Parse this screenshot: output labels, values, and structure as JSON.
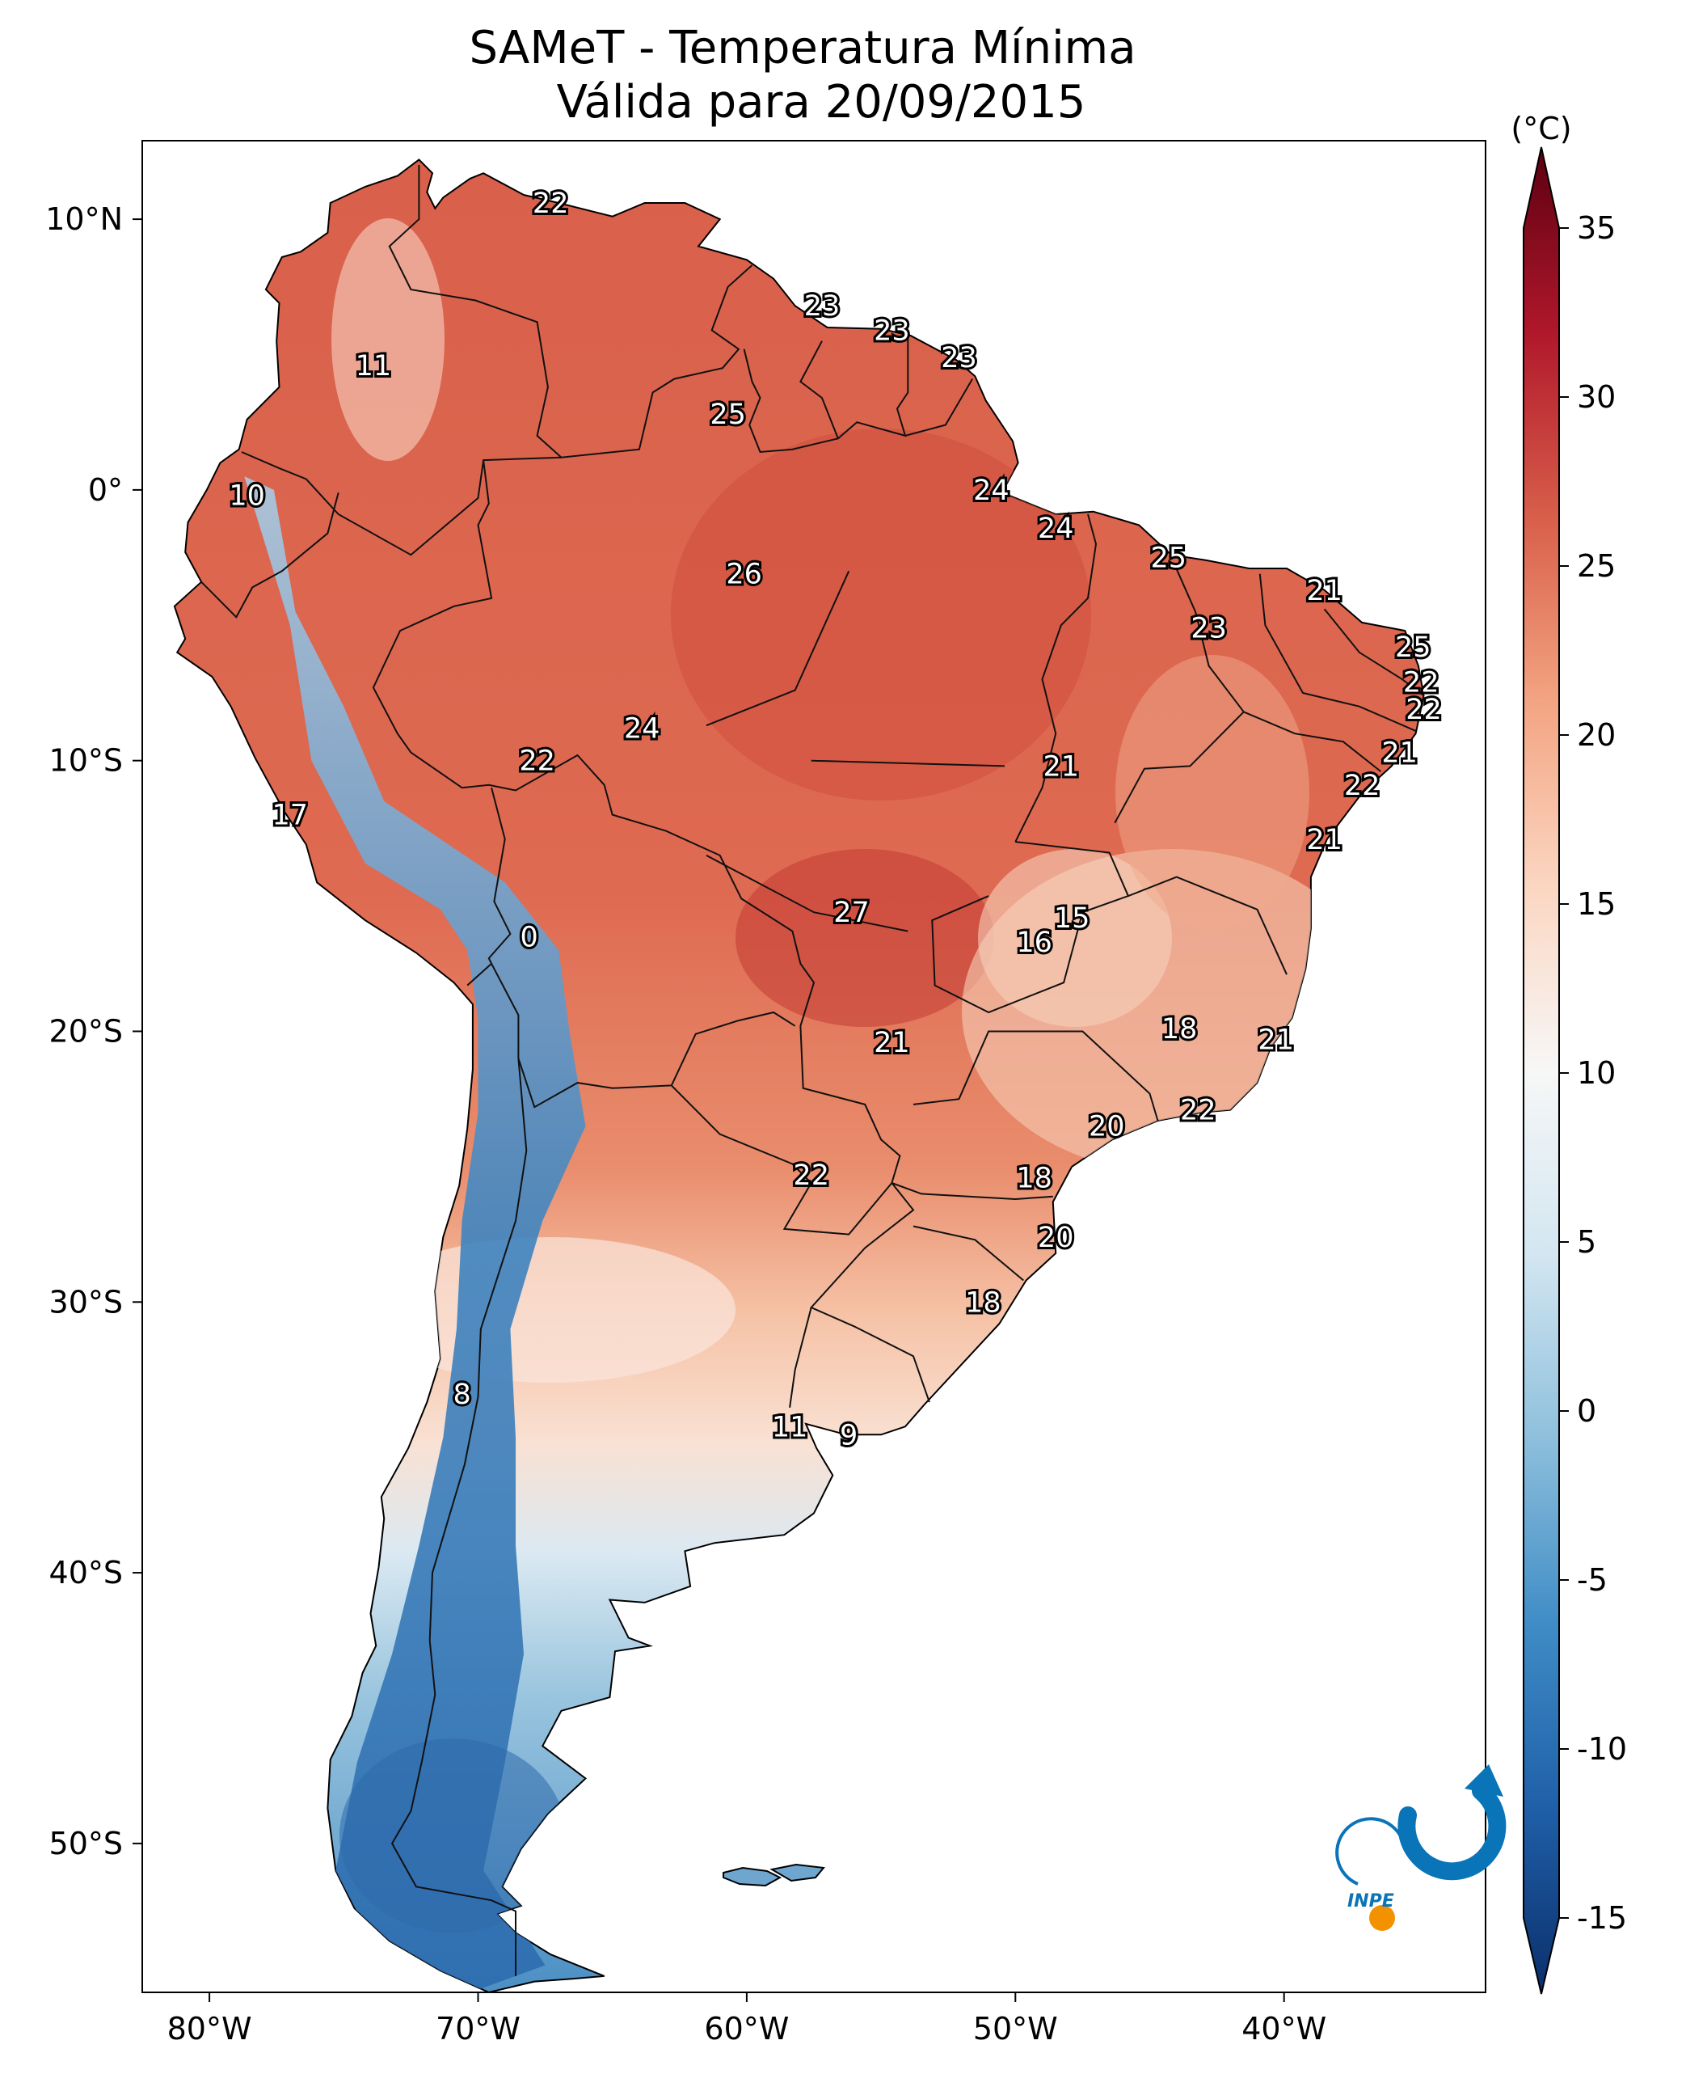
{
  "title": {
    "line1": "SAMeT - Temperatura Mínima",
    "line2": "Válida para 20/09/2015"
  },
  "map": {
    "type": "heatmap",
    "lat_ticks": [
      {
        "label": "10°N",
        "lat": 10
      },
      {
        "label": "0°",
        "lat": 0
      },
      {
        "label": "10°S",
        "lat": -10
      },
      {
        "label": "20°S",
        "lat": -20
      },
      {
        "label": "30°S",
        "lat": -30
      },
      {
        "label": "40°S",
        "lat": -40
      },
      {
        "label": "50°S",
        "lat": -50
      }
    ],
    "lon_ticks": [
      {
        "label": "80°W",
        "lon": -80
      },
      {
        "label": "70°W",
        "lon": -70
      },
      {
        "label": "60°W",
        "lon": -60
      },
      {
        "label": "50°W",
        "lon": -50
      },
      {
        "label": "40°W",
        "lon": -40
      }
    ],
    "lon_range": [
      -82.5,
      -32.5
    ],
    "lat_range": [
      -55.5,
      12.9
    ],
    "city_values": [
      {
        "value": "22",
        "lon": -67.3,
        "lat": 10.6
      },
      {
        "value": "23",
        "lon": -57.2,
        "lat": 6.8
      },
      {
        "value": "23",
        "lon": -54.6,
        "lat": 5.9
      },
      {
        "value": "23",
        "lon": -52.1,
        "lat": 4.9
      },
      {
        "value": "11",
        "lon": -73.9,
        "lat": 4.6
      },
      {
        "value": "25",
        "lon": -60.7,
        "lat": 2.8
      },
      {
        "value": "24",
        "lon": -50.9,
        "lat": 0.0
      },
      {
        "value": "10",
        "lon": -78.6,
        "lat": -0.2
      },
      {
        "value": "24",
        "lon": -48.5,
        "lat": -1.4
      },
      {
        "value": "25",
        "lon": -44.3,
        "lat": -2.5
      },
      {
        "value": "26",
        "lon": -60.1,
        "lat": -3.1
      },
      {
        "value": "21",
        "lon": -38.5,
        "lat": -3.7
      },
      {
        "value": "23",
        "lon": -42.8,
        "lat": -5.1
      },
      {
        "value": "25",
        "lon": -35.2,
        "lat": -5.8
      },
      {
        "value": "22",
        "lon": -34.9,
        "lat": -7.1
      },
      {
        "value": "22",
        "lon": -34.8,
        "lat": -8.1
      },
      {
        "value": "24",
        "lon": -63.9,
        "lat": -8.8
      },
      {
        "value": "21",
        "lon": -35.7,
        "lat": -9.7
      },
      {
        "value": "22",
        "lon": -67.8,
        "lat": -10.0
      },
      {
        "value": "21",
        "lon": -48.3,
        "lat": -10.2
      },
      {
        "value": "22",
        "lon": -37.1,
        "lat": -10.9
      },
      {
        "value": "17",
        "lon": -77.0,
        "lat": -12.0
      },
      {
        "value": "21",
        "lon": -38.5,
        "lat": -12.9
      },
      {
        "value": "27",
        "lon": -56.1,
        "lat": -15.6
      },
      {
        "value": "15",
        "lon": -47.9,
        "lat": -15.8
      },
      {
        "value": "0",
        "lon": -68.1,
        "lat": -16.5
      },
      {
        "value": "16",
        "lon": -49.3,
        "lat": -16.7
      },
      {
        "value": "18",
        "lon": -43.9,
        "lat": -19.9
      },
      {
        "value": "21",
        "lon": -54.6,
        "lat": -20.4
      },
      {
        "value": "21",
        "lon": -40.3,
        "lat": -20.3
      },
      {
        "value": "22",
        "lon": -43.2,
        "lat": -22.9
      },
      {
        "value": "20",
        "lon": -46.6,
        "lat": -23.5
      },
      {
        "value": "22",
        "lon": -57.6,
        "lat": -25.3
      },
      {
        "value": "18",
        "lon": -49.3,
        "lat": -25.4
      },
      {
        "value": "20",
        "lon": -48.5,
        "lat": -27.6
      },
      {
        "value": "18",
        "lon": -51.2,
        "lat": -30.0
      },
      {
        "value": "8",
        "lon": -70.6,
        "lat": -33.4
      },
      {
        "value": "11",
        "lon": -58.4,
        "lat": -34.6
      },
      {
        "value": "9",
        "lon": -56.2,
        "lat": -34.9
      }
    ]
  },
  "colorbar": {
    "unit": "(°C)",
    "min": -15,
    "max": 35,
    "ticks": [
      "35",
      "30",
      "25",
      "20",
      "15",
      "10",
      "5",
      "0",
      "-5",
      "-10",
      "-15"
    ],
    "colors": [
      "#0b2f6b",
      "#1f5fa8",
      "#3f8cc6",
      "#8dbfdc",
      "#d3e6f1",
      "#f7f7f7",
      "#fbd6c1",
      "#f3a482",
      "#d85e4a",
      "#b0172b",
      "#5b0011"
    ]
  },
  "logo": {
    "text": "INPE",
    "colors": {
      "blue": "#0a74b8",
      "orange": "#f39200"
    }
  }
}
